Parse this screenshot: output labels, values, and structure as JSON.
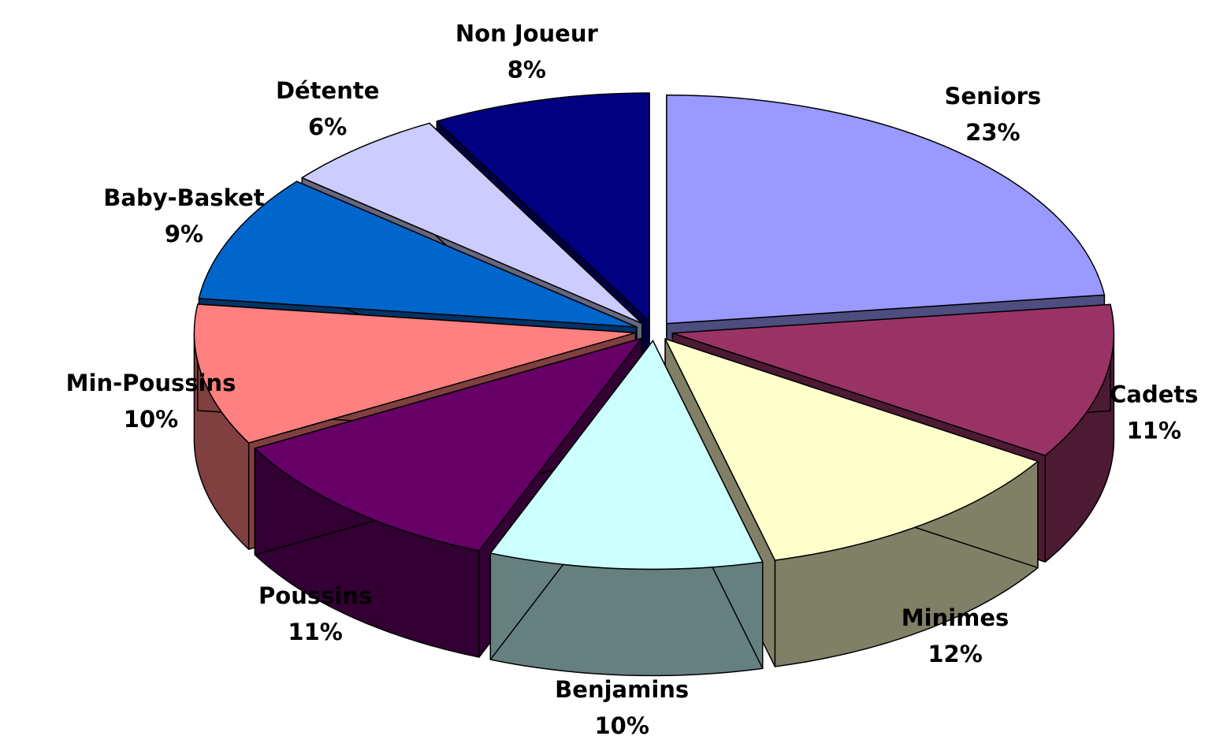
{
  "chart_data": {
    "type": "pie",
    "categories": [
      "Seniors",
      "Cadets",
      "Minimes",
      "Benjamins",
      "Poussins",
      "Min-Poussins",
      "Baby-Basket",
      "Détente",
      "Non Joueur"
    ],
    "values": [
      23,
      11,
      12,
      10,
      11,
      10,
      9,
      6,
      8
    ],
    "value_labels": [
      "23%",
      "11%",
      "12%",
      "10%",
      "11%",
      "10%",
      "9%",
      "6%",
      "8%"
    ],
    "colors": [
      "#9999ff",
      "#993366",
      "#ffffcc",
      "#ccffff",
      "#660066",
      "#ff8080",
      "#0066cc",
      "#ccccff",
      "#000080"
    ]
  }
}
